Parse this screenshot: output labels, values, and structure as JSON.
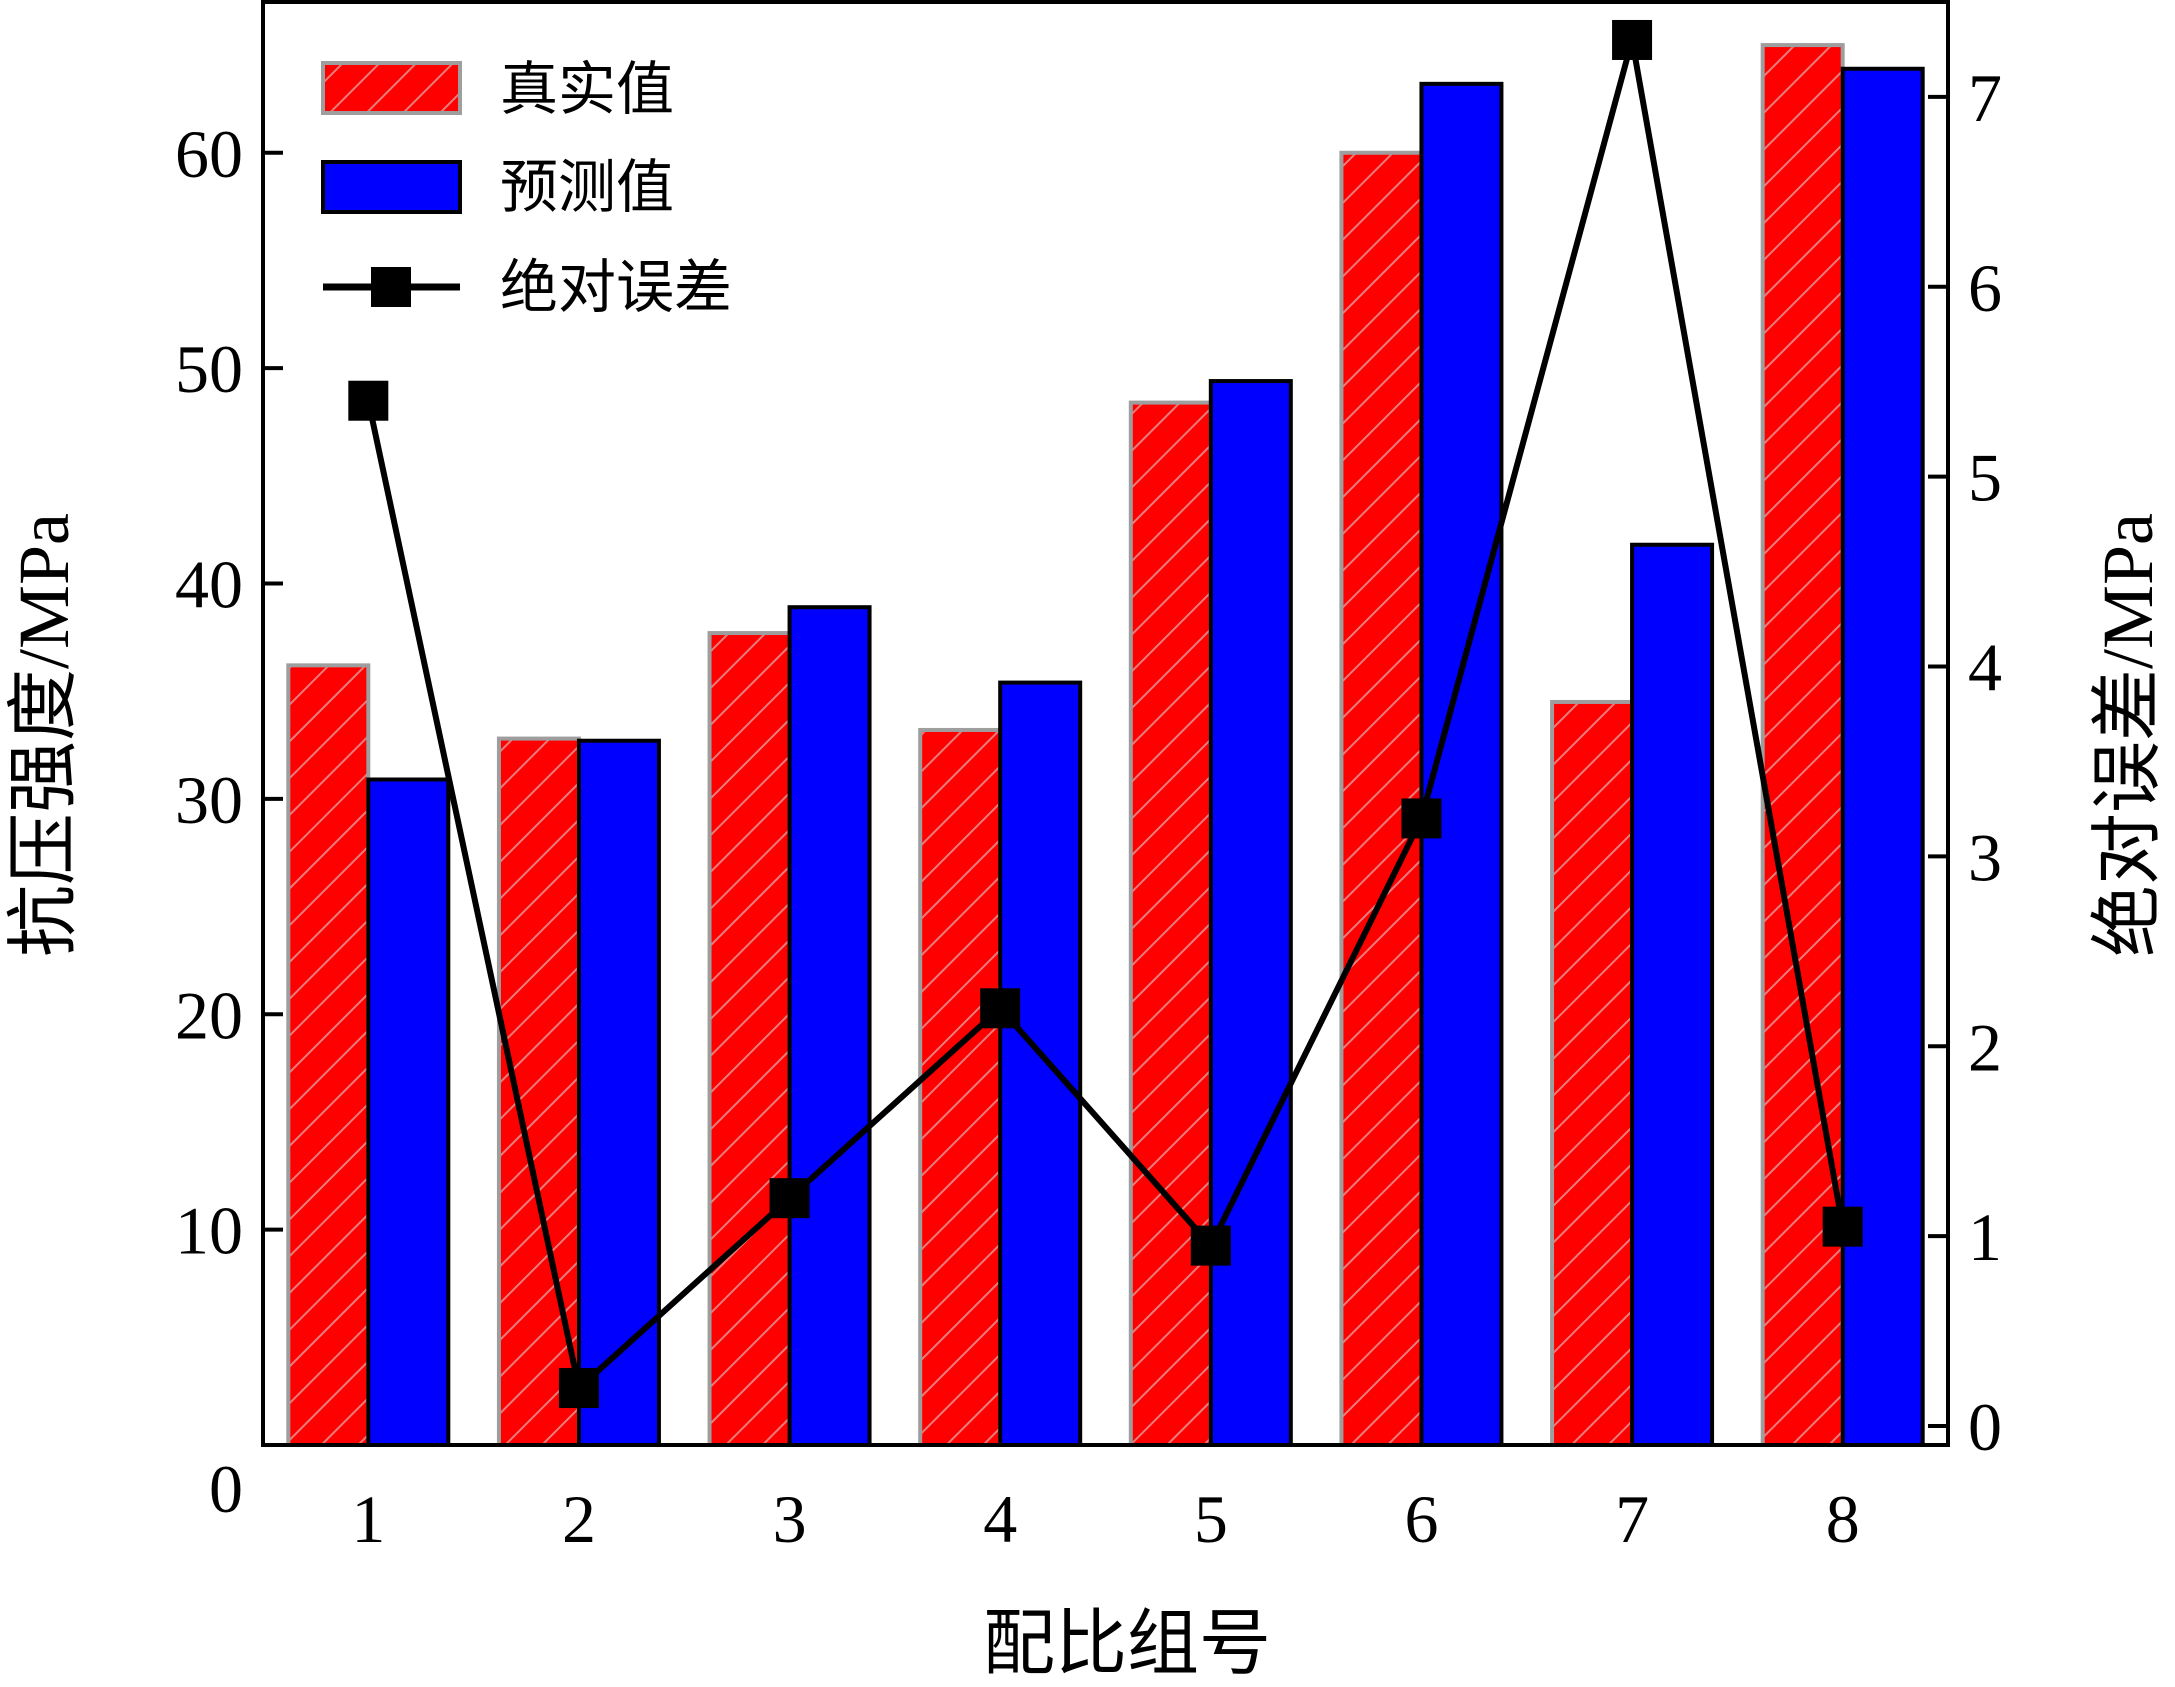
{
  "chart_data": {
    "type": "bar",
    "categories": [
      "1",
      "2",
      "3",
      "4",
      "5",
      "6",
      "7",
      "8"
    ],
    "xlabel": "配比组号",
    "ylabel": "抗压强度/MPa",
    "y2label": "绝对误差/MPa",
    "ylim": [
      0,
      67
    ],
    "y2lim": [
      -0.1,
      7.5
    ],
    "yticks": [
      0,
      10,
      20,
      30,
      40,
      50,
      60
    ],
    "y2ticks": [
      0,
      1,
      2,
      3,
      4,
      5,
      6,
      7
    ],
    "series": [
      {
        "name": "真实值",
        "type": "bar",
        "color": "#ff0000",
        "pattern": "diagonal-hatch",
        "values": [
          36.2,
          32.8,
          37.7,
          33.2,
          48.4,
          60.0,
          34.5,
          65.0
        ]
      },
      {
        "name": "预测值",
        "type": "bar",
        "color": "#0000ff",
        "values": [
          30.9,
          32.7,
          38.9,
          35.4,
          49.4,
          63.2,
          41.8,
          63.9
        ]
      },
      {
        "name": "绝对误差",
        "type": "line",
        "axis": "right",
        "color": "#000000",
        "marker": "square",
        "values": [
          5.4,
          0.2,
          1.2,
          2.2,
          0.95,
          3.2,
          7.3,
          1.05
        ]
      }
    ],
    "legend": {
      "position": "top-left"
    },
    "grid": false
  }
}
